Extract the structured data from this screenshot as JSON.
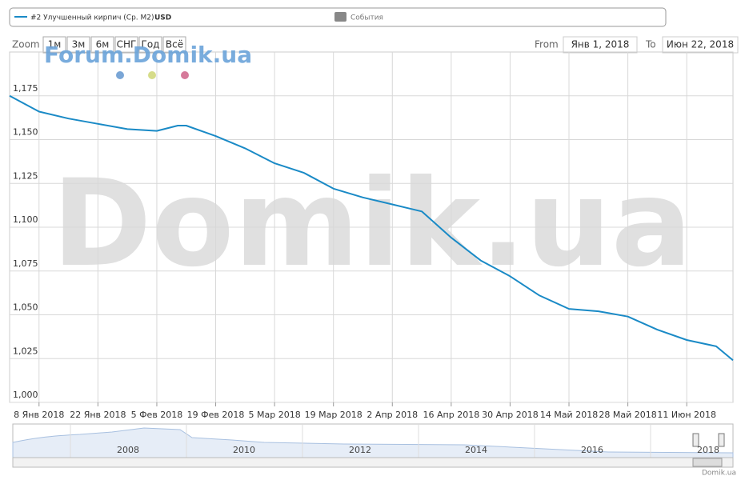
{
  "chart_data": {
    "type": "line",
    "series": [
      {
        "name": "#2 Улучшенный кирпич (Ср. М2)",
        "color": "#1a8ac6",
        "values": [
          1175,
          1166,
          1162,
          1159,
          1156,
          1155,
          1158,
          1158,
          1152,
          1145,
          1136.5,
          1131,
          1122,
          1117,
          1113,
          1109,
          1094,
          1081,
          1072,
          1061,
          1053.4,
          1052,
          1049,
          1041.5,
          1035.6,
          1032,
          1024
        ]
      }
    ],
    "currency": "USD",
    "x": [
      "2018-01-01",
      "2018-01-08",
      "2018-01-15",
      "2018-01-22",
      "2018-01-29",
      "2018-02-05",
      "2018-02-10",
      "2018-02-12",
      "2018-02-19",
      "2018-02-26",
      "2018-03-05",
      "2018-03-12",
      "2018-03-19",
      "2018-03-26",
      "2018-04-02",
      "2018-04-09",
      "2018-04-16",
      "2018-04-23",
      "2018-04-30",
      "2018-05-07",
      "2018-05-14",
      "2018-05-21",
      "2018-05-28",
      "2018-06-04",
      "2018-06-11",
      "2018-06-18",
      "2018-06-22"
    ],
    "xlim": [
      "2018-01-01",
      "2018-06-22"
    ],
    "xticks": [
      {
        "value": "2018-01-08",
        "label": "8 Янв 2018"
      },
      {
        "value": "2018-01-22",
        "label": "22 Янв 2018"
      },
      {
        "value": "2018-02-05",
        "label": "5 Фев 2018"
      },
      {
        "value": "2018-02-19",
        "label": "19 Фев 2018"
      },
      {
        "value": "2018-03-05",
        "label": "5 Мар 2018"
      },
      {
        "value": "2018-03-19",
        "label": "19 Мар 2018"
      },
      {
        "value": "2018-04-02",
        "label": "2 Апр 2018"
      },
      {
        "value": "2018-04-16",
        "label": "16 Апр 2018"
      },
      {
        "value": "2018-04-30",
        "label": "30 Апр 2018"
      },
      {
        "value": "2018-05-14",
        "label": "14 Май 2018"
      },
      {
        "value": "2018-05-28",
        "label": "28 Май 2018"
      },
      {
        "value": "2018-06-11",
        "label": "11 Июн 2018"
      }
    ],
    "ylim": [
      1000,
      1200
    ],
    "yticks": [
      {
        "value": 1000,
        "label": "1,000"
      },
      {
        "value": 1025,
        "label": "1,025"
      },
      {
        "value": 1050,
        "label": "1,050"
      },
      {
        "value": 1075,
        "label": "1,075"
      },
      {
        "value": 1100,
        "label": "1,100"
      },
      {
        "value": 1125,
        "label": "1,125"
      },
      {
        "value": 1150,
        "label": "1,150"
      },
      {
        "value": 1175,
        "label": "1,175"
      }
    ],
    "grid": true
  },
  "ui": {
    "events": "События",
    "zoom_label": "Zoom",
    "zoom_buttons": [
      "1м",
      "3м",
      "6м",
      "СНГ",
      "Год",
      "Всё"
    ],
    "from_label": "From",
    "from": "Янв 1, 2018",
    "to_label": "To",
    "to": "Июн 22, 2018",
    "watermark": "Forum.Domik.ua",
    "big_watermark": "Domik.ua",
    "navigator_years": [
      "2008",
      "2010",
      "2012",
      "2014",
      "2016",
      "2018"
    ],
    "credit": "Domik.ua"
  }
}
